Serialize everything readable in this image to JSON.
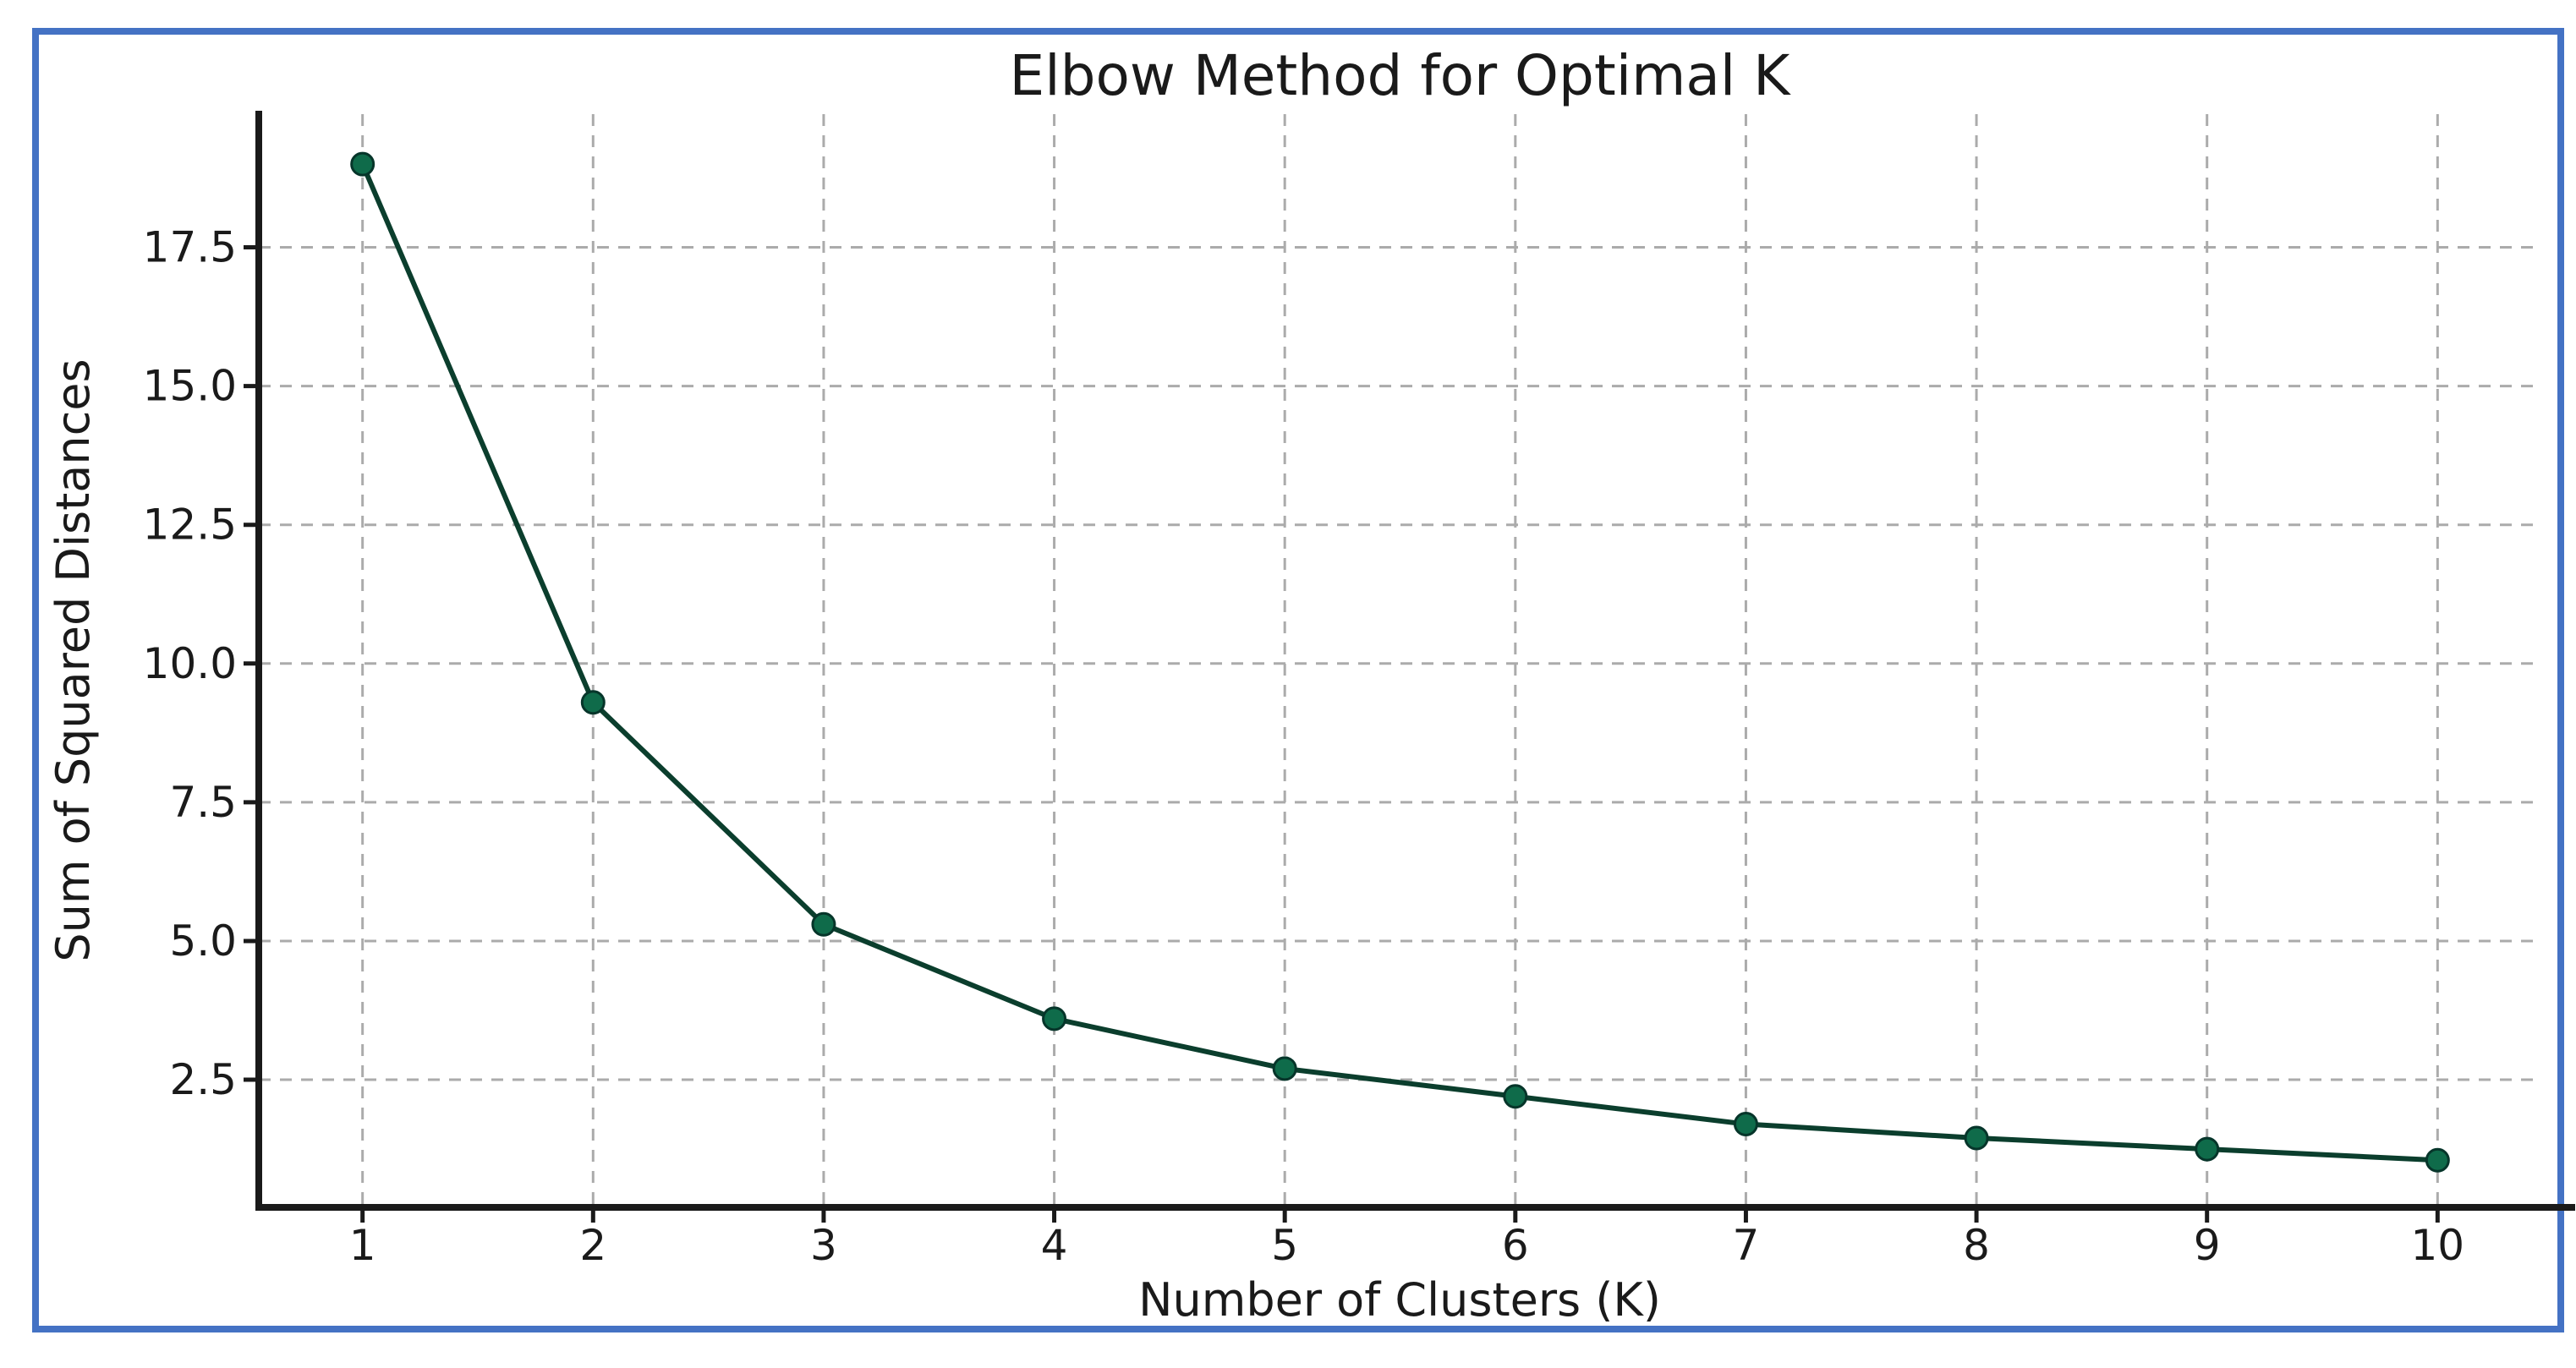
{
  "figure": {
    "border_color": "#4472C4",
    "background": "#ffffff"
  },
  "chart_data": {
    "type": "line",
    "title": "Elbow Method for Optimal K",
    "xlabel": "Number of Clusters (K)",
    "ylabel": "Sum of Squared Distances",
    "x": [
      1,
      2,
      3,
      4,
      5,
      6,
      7,
      8,
      9,
      10
    ],
    "values": [
      19.0,
      9.3,
      5.3,
      3.6,
      2.7,
      2.2,
      1.7,
      1.45,
      1.25,
      1.05
    ],
    "x_tick_labels": [
      "1",
      "2",
      "3",
      "4",
      "5",
      "6",
      "7",
      "8",
      "9",
      "10"
    ],
    "y_tick_labels": [
      "2.5",
      "5.0",
      "7.5",
      "10.0",
      "12.5",
      "15.0",
      "17.5"
    ],
    "y_tick_values": [
      2.5,
      5.0,
      7.5,
      10.0,
      12.5,
      15.0,
      17.5
    ],
    "xlim": [
      0.55,
      10.45
    ],
    "ylim": [
      0.2,
      19.9
    ],
    "grid": "dashed",
    "legend_position": "none",
    "line_color": "#0b3e2d",
    "marker_color": "#0f6b4a",
    "marker_edge_color": "#06352a",
    "grid_color": "#ababab",
    "axis_color": "#1a1a1a"
  }
}
